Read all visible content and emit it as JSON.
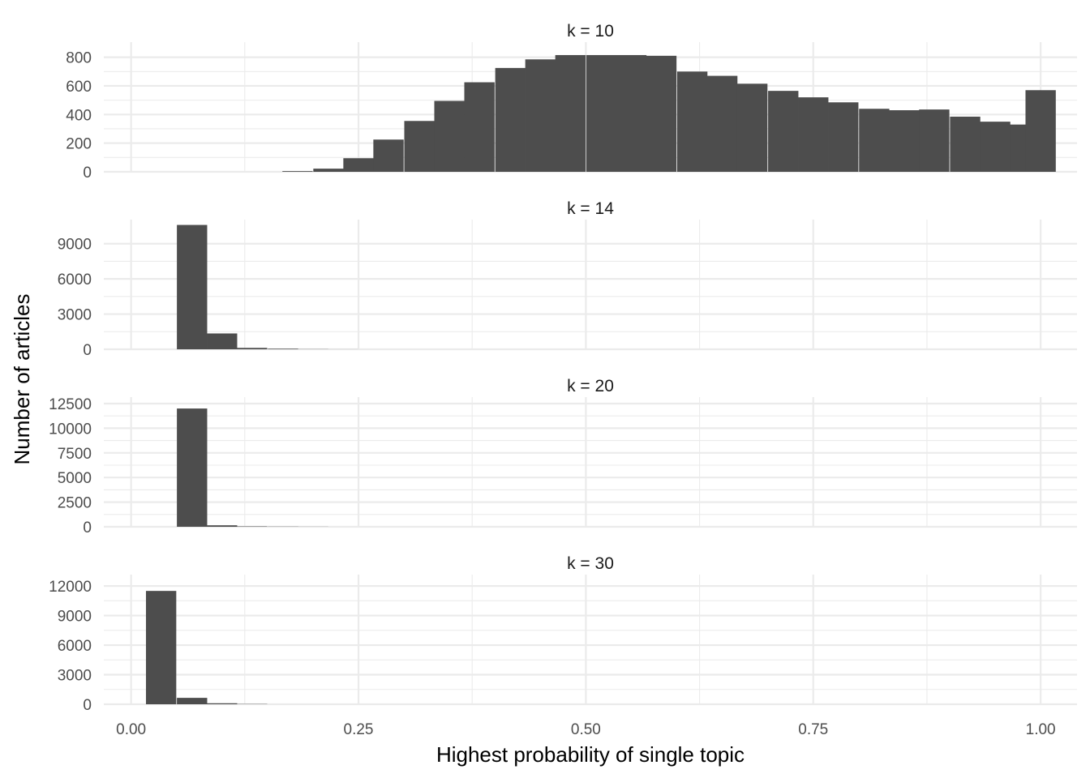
{
  "chart_data": {
    "type": "bar",
    "subtype": "faceted-histogram",
    "xlabel": "Highest probability of single topic",
    "ylabel": "Number of articles",
    "xlim": [
      -0.03,
      1.04
    ],
    "x_ticks": [
      0.0,
      0.25,
      0.5,
      0.75,
      1.0
    ],
    "x_tick_labels": [
      "0.00",
      "0.25",
      "0.50",
      "0.75",
      "1.00"
    ],
    "bin_width": 0.0333,
    "bar_color": "#4d4d4d",
    "grid_color": "#ebebeb",
    "background": "#ffffff",
    "facets": [
      {
        "label": "k = 10",
        "ylim": [
          0,
          860
        ],
        "y_ticks": [
          0,
          200,
          400,
          600,
          800
        ],
        "y_tick_labels": [
          "0",
          "200",
          "400",
          "600",
          "800"
        ],
        "bins": [
          {
            "x": 0.183,
            "count": 5
          },
          {
            "x": 0.217,
            "count": 22
          },
          {
            "x": 0.25,
            "count": 95
          },
          {
            "x": 0.283,
            "count": 225
          },
          {
            "x": 0.317,
            "count": 355
          },
          {
            "x": 0.35,
            "count": 495
          },
          {
            "x": 0.383,
            "count": 625
          },
          {
            "x": 0.417,
            "count": 725
          },
          {
            "x": 0.45,
            "count": 785
          },
          {
            "x": 0.483,
            "count": 815
          },
          {
            "x": 0.517,
            "count": 815
          },
          {
            "x": 0.55,
            "count": 815
          },
          {
            "x": 0.583,
            "count": 810
          },
          {
            "x": 0.617,
            "count": 700
          },
          {
            "x": 0.65,
            "count": 670
          },
          {
            "x": 0.683,
            "count": 615
          },
          {
            "x": 0.717,
            "count": 565
          },
          {
            "x": 0.75,
            "count": 520
          },
          {
            "x": 0.783,
            "count": 485
          },
          {
            "x": 0.817,
            "count": 440
          },
          {
            "x": 0.85,
            "count": 430
          },
          {
            "x": 0.883,
            "count": 435
          },
          {
            "x": 0.917,
            "count": 385
          },
          {
            "x": 0.95,
            "count": 350
          },
          {
            "x": 0.983,
            "count": 330
          },
          {
            "x": 1.0,
            "count": 570
          }
        ]
      },
      {
        "label": "k = 14",
        "ylim": [
          0,
          10500
        ],
        "y_ticks": [
          0,
          3000,
          6000,
          9000
        ],
        "y_tick_labels": [
          "0",
          "3000",
          "6000",
          "9000"
        ],
        "bins": [
          {
            "x": 0.067,
            "count": 10600
          },
          {
            "x": 0.1,
            "count": 1350
          },
          {
            "x": 0.133,
            "count": 120
          },
          {
            "x": 0.167,
            "count": 50
          },
          {
            "x": 0.2,
            "count": 15
          },
          {
            "x": 0.233,
            "count": 5
          }
        ]
      },
      {
        "label": "k = 20",
        "ylim": [
          0,
          12500
        ],
        "y_ticks": [
          0,
          2500,
          5000,
          7500,
          10000,
          12500
        ],
        "y_tick_labels": [
          "0",
          "2500",
          "5000",
          "7500",
          "10000",
          "12500"
        ],
        "bins": [
          {
            "x": 0.067,
            "count": 12000
          },
          {
            "x": 0.1,
            "count": 150
          },
          {
            "x": 0.133,
            "count": 40
          },
          {
            "x": 0.167,
            "count": 20
          },
          {
            "x": 0.2,
            "count": 10
          }
        ]
      },
      {
        "label": "k = 30",
        "ylim": [
          0,
          12500
        ],
        "y_ticks": [
          0,
          3000,
          6000,
          9000,
          12000
        ],
        "y_tick_labels": [
          "0",
          "3000",
          "6000",
          "9000",
          "12000"
        ],
        "bins": [
          {
            "x": 0.033,
            "count": 11500
          },
          {
            "x": 0.067,
            "count": 650
          },
          {
            "x": 0.1,
            "count": 100
          },
          {
            "x": 0.133,
            "count": 25
          }
        ]
      }
    ]
  }
}
